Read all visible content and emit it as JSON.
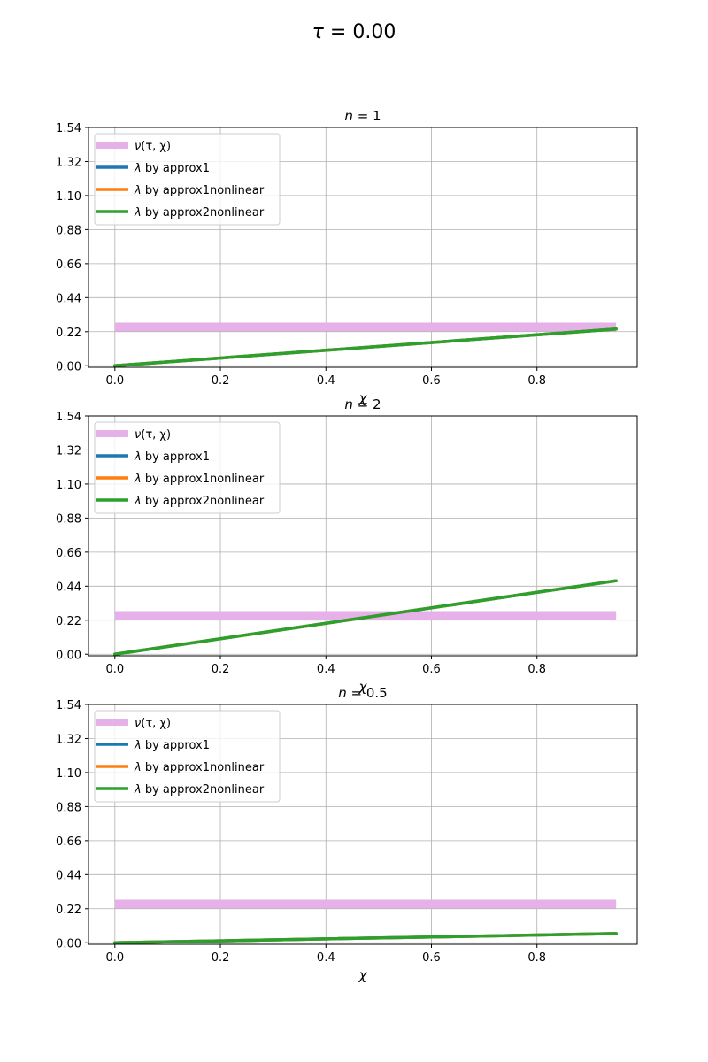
{
  "figure": {
    "suptitle_symbol": "τ",
    "suptitle_rest": " = 0.00"
  },
  "chart_data": [
    {
      "type": "line",
      "title_symbol": "n",
      "title_rest": " = 1",
      "xlabel": "χ",
      "ylabel": "",
      "xlim": [
        -0.05,
        0.99
      ],
      "ylim": [
        -0.01,
        1.54
      ],
      "xticks": [
        "0.0",
        "0.2",
        "0.4",
        "0.6",
        "0.8"
      ],
      "yticks": [
        "0.00",
        "0.22",
        "0.44",
        "0.66",
        "0.88",
        "1.10",
        "1.32",
        "1.54"
      ],
      "grid": true,
      "legend_position": "upper-left",
      "series": [
        {
          "name_symbol": "ν",
          "name_rest": "(τ, χ)",
          "color": "#e6b0e8",
          "width": 10,
          "x": [
            0.0,
            0.95
          ],
          "y": [
            0.25,
            0.25
          ]
        },
        {
          "name_symbol": "λ",
          "name_rest": " by approx1",
          "color": "#1f77b4",
          "width": 3.5,
          "x": [
            0.0,
            0.95
          ],
          "y": [
            0.0,
            0.2375
          ]
        },
        {
          "name_symbol": "λ",
          "name_rest": " by approx1nonlinear",
          "color": "#ff7f0e",
          "width": 3.5,
          "x": [
            0.0,
            0.95
          ],
          "y": [
            0.0,
            0.2375
          ]
        },
        {
          "name_symbol": "λ",
          "name_rest": " by approx2nonlinear",
          "color": "#2ca02c",
          "width": 3.5,
          "x": [
            0.0,
            0.95
          ],
          "y": [
            0.0,
            0.2375
          ]
        }
      ]
    },
    {
      "type": "line",
      "title_symbol": "n",
      "title_rest": " = 2",
      "xlabel": "χ",
      "ylabel": "",
      "xlim": [
        -0.05,
        0.99
      ],
      "ylim": [
        -0.01,
        1.54
      ],
      "xticks": [
        "0.0",
        "0.2",
        "0.4",
        "0.6",
        "0.8"
      ],
      "yticks": [
        "0.00",
        "0.22",
        "0.44",
        "0.66",
        "0.88",
        "1.10",
        "1.32",
        "1.54"
      ],
      "grid": true,
      "legend_position": "upper-left",
      "series": [
        {
          "name_symbol": "ν",
          "name_rest": "(τ, χ)",
          "color": "#e6b0e8",
          "width": 10,
          "x": [
            0.0,
            0.95
          ],
          "y": [
            0.25,
            0.25
          ]
        },
        {
          "name_symbol": "λ",
          "name_rest": " by approx1",
          "color": "#1f77b4",
          "width": 3.5,
          "x": [
            0.0,
            0.95
          ],
          "y": [
            0.0,
            0.475
          ]
        },
        {
          "name_symbol": "λ",
          "name_rest": " by approx1nonlinear",
          "color": "#ff7f0e",
          "width": 3.5,
          "x": [
            0.0,
            0.95
          ],
          "y": [
            0.0,
            0.475
          ]
        },
        {
          "name_symbol": "λ",
          "name_rest": " by approx2nonlinear",
          "color": "#2ca02c",
          "width": 3.5,
          "x": [
            0.0,
            0.95
          ],
          "y": [
            0.0,
            0.475
          ]
        }
      ]
    },
    {
      "type": "line",
      "title_symbol": "n",
      "title_rest": " = 0.5",
      "xlabel": "χ",
      "ylabel": "",
      "xlim": [
        -0.05,
        0.99
      ],
      "ylim": [
        -0.01,
        1.54
      ],
      "xticks": [
        "0.0",
        "0.2",
        "0.4",
        "0.6",
        "0.8"
      ],
      "yticks": [
        "0.00",
        "0.22",
        "0.44",
        "0.66",
        "0.88",
        "1.10",
        "1.32",
        "1.54"
      ],
      "grid": true,
      "legend_position": "upper-left",
      "series": [
        {
          "name_symbol": "ν",
          "name_rest": "(τ, χ)",
          "color": "#e6b0e8",
          "width": 10,
          "x": [
            0.0,
            0.95
          ],
          "y": [
            0.25,
            0.25
          ]
        },
        {
          "name_symbol": "λ",
          "name_rest": " by approx1",
          "color": "#1f77b4",
          "width": 3.5,
          "x": [
            0.0,
            0.95
          ],
          "y": [
            0.0,
            0.059
          ]
        },
        {
          "name_symbol": "λ",
          "name_rest": " by approx1nonlinear",
          "color": "#ff7f0e",
          "width": 3.5,
          "x": [
            0.0,
            0.95
          ],
          "y": [
            0.0,
            0.059
          ]
        },
        {
          "name_symbol": "λ",
          "name_rest": " by approx2nonlinear",
          "color": "#2ca02c",
          "width": 3.5,
          "x": [
            0.0,
            0.95
          ],
          "y": [
            0.0,
            0.059
          ]
        }
      ]
    }
  ]
}
